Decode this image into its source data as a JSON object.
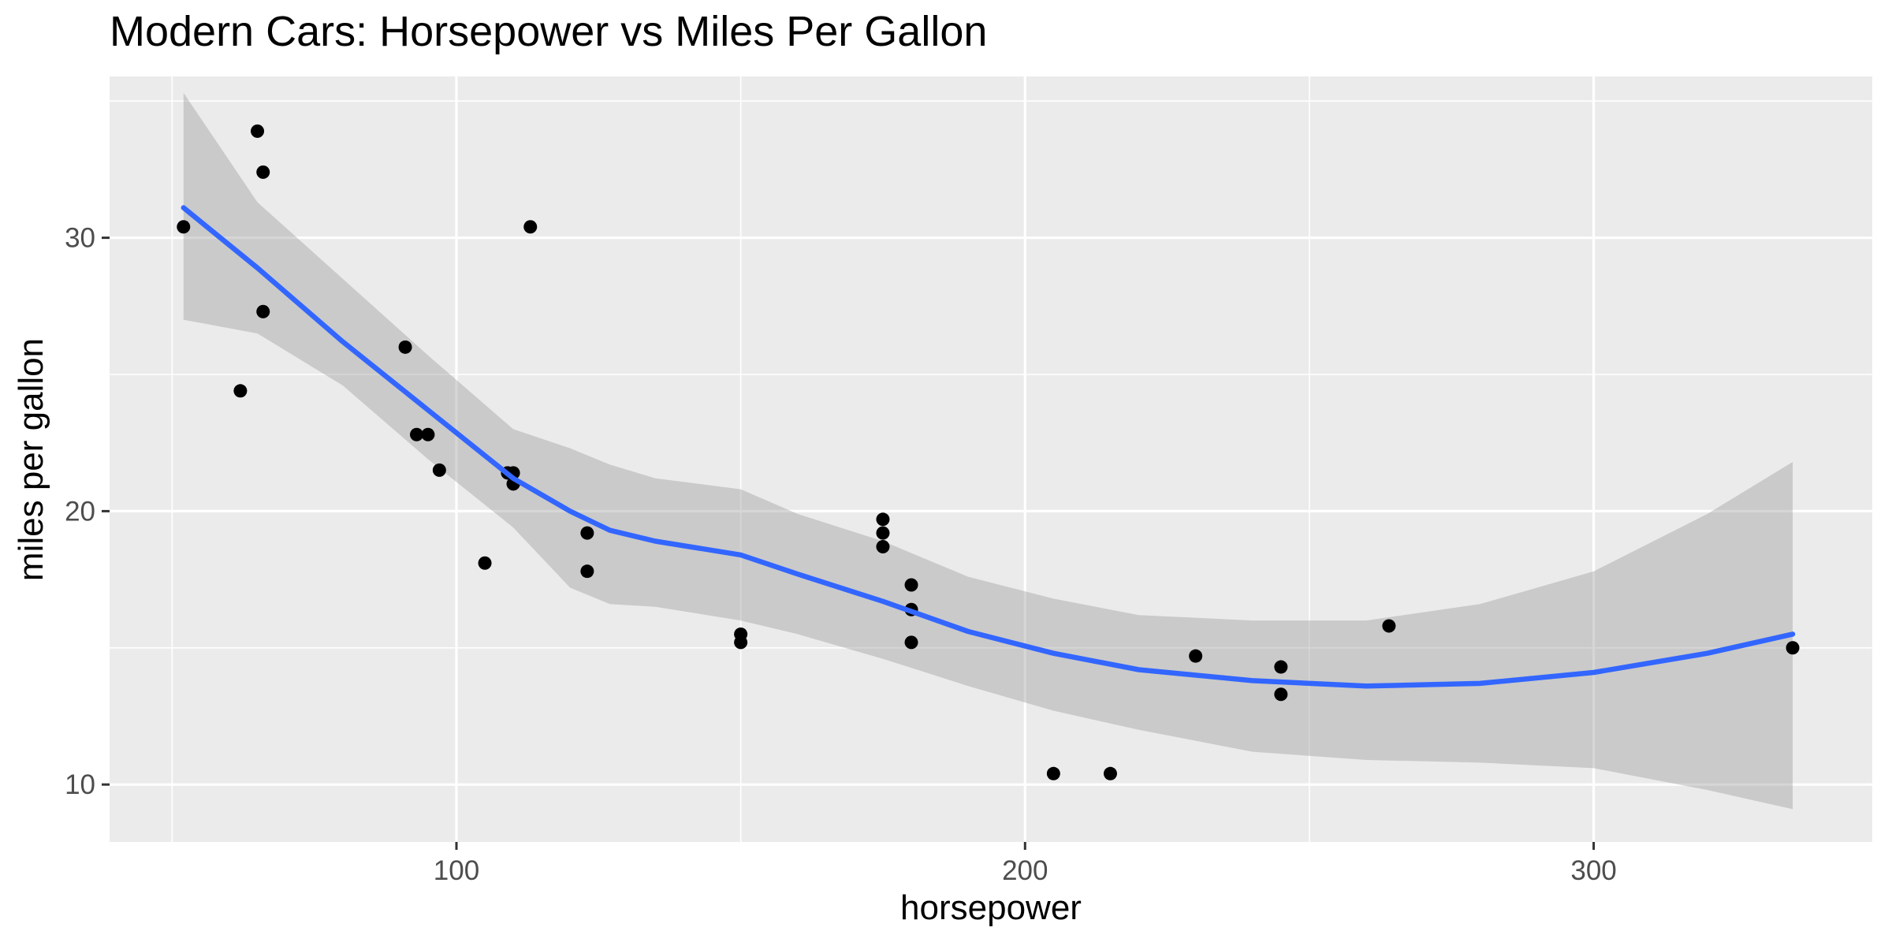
{
  "chart_data": {
    "type": "scatter",
    "title": "Modern Cars: Horsepower vs Miles Per Gallon",
    "xlabel": "horsepower",
    "ylabel": "miles per gallon",
    "xlim": [
      39,
      349
    ],
    "ylim": [
      7.9,
      35.9
    ],
    "xticks": [
      100,
      200,
      300
    ],
    "yticks": [
      10,
      20,
      30
    ],
    "grid": true,
    "colors": {
      "panel": "#ebebeb",
      "grid": "#ffffff",
      "point": "#000000",
      "smooth_line": "#3366ff",
      "ribbon": "#999999"
    },
    "points": [
      {
        "x": 110,
        "y": 21.0
      },
      {
        "x": 110,
        "y": 21.0
      },
      {
        "x": 93,
        "y": 22.8
      },
      {
        "x": 110,
        "y": 21.4
      },
      {
        "x": 175,
        "y": 18.7
      },
      {
        "x": 105,
        "y": 18.1
      },
      {
        "x": 245,
        "y": 14.3
      },
      {
        "x": 62,
        "y": 24.4
      },
      {
        "x": 95,
        "y": 22.8
      },
      {
        "x": 123,
        "y": 19.2
      },
      {
        "x": 123,
        "y": 17.8
      },
      {
        "x": 180,
        "y": 16.4
      },
      {
        "x": 180,
        "y": 17.3
      },
      {
        "x": 180,
        "y": 15.2
      },
      {
        "x": 205,
        "y": 10.4
      },
      {
        "x": 215,
        "y": 10.4
      },
      {
        "x": 230,
        "y": 14.7
      },
      {
        "x": 66,
        "y": 32.4
      },
      {
        "x": 52,
        "y": 30.4
      },
      {
        "x": 65,
        "y": 33.9
      },
      {
        "x": 97,
        "y": 21.5
      },
      {
        "x": 150,
        "y": 15.5
      },
      {
        "x": 150,
        "y": 15.2
      },
      {
        "x": 245,
        "y": 13.3
      },
      {
        "x": 175,
        "y": 19.2
      },
      {
        "x": 66,
        "y": 27.3
      },
      {
        "x": 91,
        "y": 26.0
      },
      {
        "x": 113,
        "y": 30.4
      },
      {
        "x": 264,
        "y": 15.8
      },
      {
        "x": 175,
        "y": 19.7
      },
      {
        "x": 335,
        "y": 15.0
      },
      {
        "x": 109,
        "y": 21.4
      }
    ],
    "smooth": {
      "x": [
        52,
        65,
        80,
        95,
        110,
        120,
        127,
        135,
        150,
        160,
        175,
        190,
        205,
        220,
        240,
        260,
        280,
        300,
        320,
        335
      ],
      "y": [
        31.1,
        28.9,
        26.2,
        23.7,
        21.2,
        20.0,
        19.3,
        18.9,
        18.4,
        17.7,
        16.7,
        15.6,
        14.8,
        14.2,
        13.8,
        13.6,
        13.7,
        14.1,
        14.8,
        15.5
      ],
      "upper": [
        35.3,
        31.3,
        28.5,
        25.7,
        23.0,
        22.3,
        21.7,
        21.2,
        20.8,
        19.9,
        18.9,
        17.6,
        16.8,
        16.2,
        16.0,
        16.0,
        16.6,
        17.8,
        19.9,
        21.8
      ],
      "lower": [
        27.0,
        26.5,
        24.6,
        21.9,
        19.4,
        17.2,
        16.6,
        16.5,
        16.0,
        15.5,
        14.6,
        13.6,
        12.7,
        12.0,
        11.2,
        10.9,
        10.8,
        10.6,
        9.8,
        9.1
      ]
    }
  }
}
